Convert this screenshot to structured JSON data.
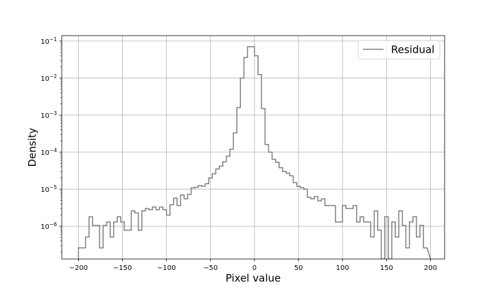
{
  "chart_data": {
    "type": "histogram-step",
    "xlabel": "Pixel value",
    "ylabel": "Density",
    "xlim": [
      -219,
      216
    ],
    "ylim": [
      1.3e-07,
      0.14
    ],
    "yscale": "log",
    "grid": true,
    "legend_position": "top-right",
    "x_ticks": [
      -200,
      -150,
      -100,
      -50,
      0,
      50,
      100,
      150,
      200
    ],
    "y_ticks": [
      {
        "value": 1e-06,
        "base": "10",
        "exp": "−6"
      },
      {
        "value": 1e-05,
        "base": "10",
        "exp": "−5"
      },
      {
        "value": 0.0001,
        "base": "10",
        "exp": "−4"
      },
      {
        "value": 0.001,
        "base": "10",
        "exp": "−3"
      },
      {
        "value": 0.01,
        "base": "10",
        "exp": "−2"
      },
      {
        "value": 0.1,
        "base": "10",
        "exp": "−1"
      }
    ],
    "series": [
      {
        "name": "Residual",
        "color": "#808080",
        "bin_edges": [
          -200,
          -196,
          -192,
          -188,
          -184,
          -180,
          -176,
          -172,
          -168,
          -164,
          -160,
          -156,
          -152,
          -148,
          -144,
          -140,
          -136,
          -132,
          -128,
          -124,
          -120,
          -116,
          -112,
          -108,
          -104,
          -100,
          -96,
          -92,
          -88,
          -84,
          -80,
          -76,
          -72,
          -68,
          -64,
          -60,
          -56,
          -52,
          -48,
          -44,
          -40,
          -36,
          -32,
          -28,
          -24,
          -20,
          -16,
          -12,
          -8,
          -4,
          0,
          4,
          8,
          12,
          16,
          20,
          24,
          28,
          32,
          36,
          40,
          44,
          48,
          52,
          56,
          60,
          64,
          68,
          72,
          76,
          80,
          84,
          88,
          92,
          96,
          100,
          104,
          108,
          112,
          116,
          120,
          124,
          128,
          132,
          136,
          140,
          144,
          148,
          152,
          156,
          160,
          164,
          168,
          172,
          176,
          180,
          184,
          188,
          192,
          196
        ],
        "values": [
          2.6e-07,
          2.6e-07,
          5.1e-07,
          1.8e-06,
          1.05e-06,
          1.05e-06,
          2.6e-07,
          1.05e-06,
          1.3e-06,
          5.1e-07,
          1.3e-06,
          1.8e-06,
          1.3e-06,
          7.8e-07,
          7.8e-07,
          2.6e-06,
          2.3e-06,
          7.8e-07,
          2.6e-06,
          3e-06,
          2.8e-06,
          3.3e-06,
          2.8e-06,
          3.3e-06,
          2.8e-06,
          2e-06,
          3.8e-06,
          5.7e-06,
          3.6e-06,
          7e-06,
          5.5e-06,
          7.2e-06,
          1.08e-05,
          1.12e-05,
          1.25e-05,
          1.2e-05,
          1.4e-05,
          2e-05,
          2.6e-05,
          3.5e-05,
          4.2e-05,
          5.5e-05,
          7.8e-05,
          0.00012,
          0.00033,
          0.0016,
          0.01,
          0.036,
          0.07,
          0.07,
          0.04,
          0.0125,
          0.0015,
          0.00016,
          0.0001,
          6.4e-05,
          5.3e-05,
          3.8e-05,
          3e-05,
          2.7e-05,
          2.3e-05,
          1.5e-05,
          1.2e-05,
          1.1e-05,
          1e-05,
          6e-06,
          5.5e-06,
          6.3e-06,
          4.8e-06,
          5.5e-06,
          3.6e-06,
          3.6e-06,
          3.6e-06,
          1.3e-06,
          1.3e-06,
          3.6e-06,
          3e-06,
          3e-06,
          3.6e-06,
          1.3e-06,
          1.8e-06,
          1.3e-06,
          1.3e-06,
          5.1e-07,
          2.6e-06,
          7.8e-07,
          1.3e-07,
          1.8e-06,
          1.3e-07,
          1.3e-06,
          5.1e-07,
          2.6e-06,
          1.05e-06,
          2.6e-07,
          1.3e-06,
          1.8e-06,
          5.1e-07,
          1.05e-06,
          2.6e-07
        ]
      }
    ]
  }
}
